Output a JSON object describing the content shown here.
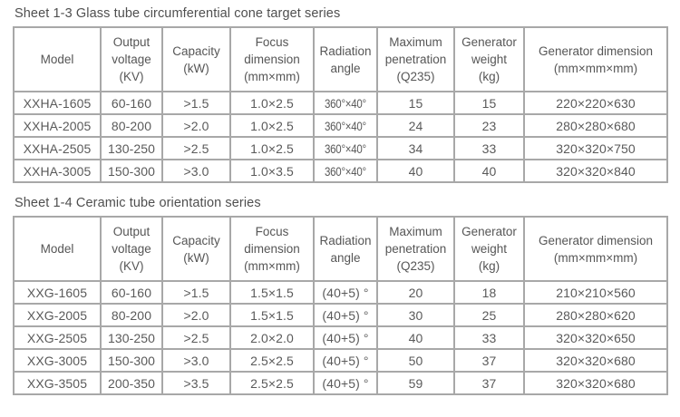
{
  "colors": {
    "background": "#ffffff",
    "text": "#5a5a5a",
    "title_text": "#4f4f4f",
    "border": "#a8a8a8"
  },
  "tables": [
    {
      "title": "Sheet 1-3 Glass tube circumferential cone target series",
      "headers": [
        "Model",
        "Output\nvoltage\n(KV)",
        "Capacity\n(kW)",
        "Focus\ndimension\n(mm×mm)",
        "Radiation\nangle",
        "Maximum\npenetration\n(Q235)",
        "Generator\nweight\n(kg)",
        "Generator dimension\n(mm×mm×mm)"
      ],
      "rows": [
        [
          "XXHA-1605",
          "60-160",
          ">1.5",
          "1.0×2.5",
          "360°×40°",
          "15",
          "15",
          "220×220×630"
        ],
        [
          "XXHA-2005",
          "80-200",
          ">2.0",
          "1.0×2.5",
          "360°×40°",
          "24",
          "23",
          "280×280×680"
        ],
        [
          "XXHA-2505",
          "130-250",
          ">2.5",
          "1.0×2.5",
          "360°×40°",
          "34",
          "33",
          "320×320×750"
        ],
        [
          "XXHA-3005",
          "150-300",
          ">3.0",
          "1.0×3.5",
          "360°×40°",
          "40",
          "40",
          "320×320×840"
        ]
      ]
    },
    {
      "title": "Sheet 1-4 Ceramic tube orientation series",
      "headers": [
        "Model",
        "Output\nvoltage\n(KV)",
        "Capacity\n(kW)",
        "Focus\ndimension\n(mm×mm)",
        "Radiation\nangle",
        "Maximum\npenetration\n(Q235)",
        "Generator\nweight\n(kg)",
        "Generator dimension\n(mm×mm×mm)"
      ],
      "rows": [
        [
          "XXG-1605",
          "60-160",
          ">1.5",
          "1.5×1.5",
          "(40+5) °",
          "20",
          "18",
          "210×210×560"
        ],
        [
          "XXG-2005",
          "80-200",
          ">2.0",
          "1.5×1.5",
          "(40+5) °",
          "30",
          "25",
          "280×280×620"
        ],
        [
          "XXG-2505",
          "130-250",
          ">2.5",
          "2.0×2.0",
          "(40+5) °",
          "40",
          "33",
          "320×320×650"
        ],
        [
          "XXG-3005",
          "150-300",
          ">3.0",
          "2.5×2.5",
          "(40+5) °",
          "50",
          "37",
          "320×320×680"
        ],
        [
          "XXG-3505",
          "200-350",
          ">3.5",
          "2.5×2.5",
          "(40+5) °",
          "59",
          "37",
          "320×320×680"
        ]
      ]
    }
  ]
}
